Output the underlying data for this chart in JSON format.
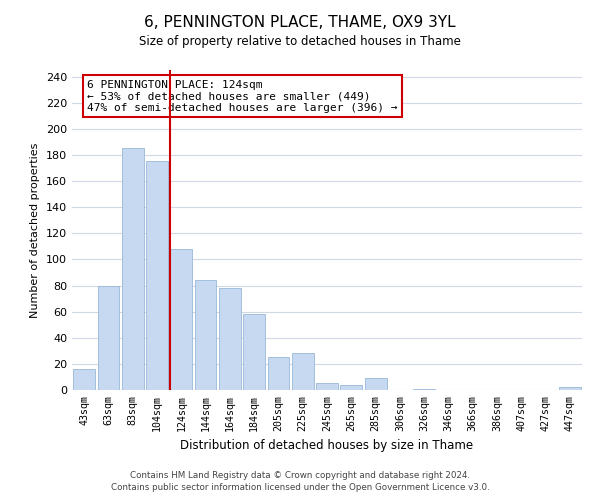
{
  "title": "6, PENNINGTON PLACE, THAME, OX9 3YL",
  "subtitle": "Size of property relative to detached houses in Thame",
  "xlabel": "Distribution of detached houses by size in Thame",
  "ylabel": "Number of detached properties",
  "bar_labels": [
    "43sqm",
    "63sqm",
    "83sqm",
    "104sqm",
    "124sqm",
    "144sqm",
    "164sqm",
    "184sqm",
    "205sqm",
    "225sqm",
    "245sqm",
    "265sqm",
    "285sqm",
    "306sqm",
    "326sqm",
    "346sqm",
    "366sqm",
    "386sqm",
    "407sqm",
    "427sqm",
    "447sqm"
  ],
  "bar_values": [
    16,
    80,
    185,
    175,
    108,
    84,
    78,
    58,
    25,
    28,
    5,
    4,
    9,
    0,
    1,
    0,
    0,
    0,
    0,
    0,
    2
  ],
  "bar_color": "#c6d9f1",
  "bar_edge_color": "#9ab8d8",
  "vline_x_index": 4,
  "vline_color": "#cc0000",
  "annotation_line1": "6 PENNINGTON PLACE: 124sqm",
  "annotation_line2": "← 53% of detached houses are smaller (449)",
  "annotation_line3": "47% of semi-detached houses are larger (396) →",
  "box_edge_color": "#cc0000",
  "ylim": [
    0,
    245
  ],
  "yticks": [
    0,
    20,
    40,
    60,
    80,
    100,
    120,
    140,
    160,
    180,
    200,
    220,
    240
  ],
  "footnote1": "Contains HM Land Registry data © Crown copyright and database right 2024.",
  "footnote2": "Contains public sector information licensed under the Open Government Licence v3.0.",
  "bg_color": "#ffffff",
  "grid_color": "#d0d8e8"
}
